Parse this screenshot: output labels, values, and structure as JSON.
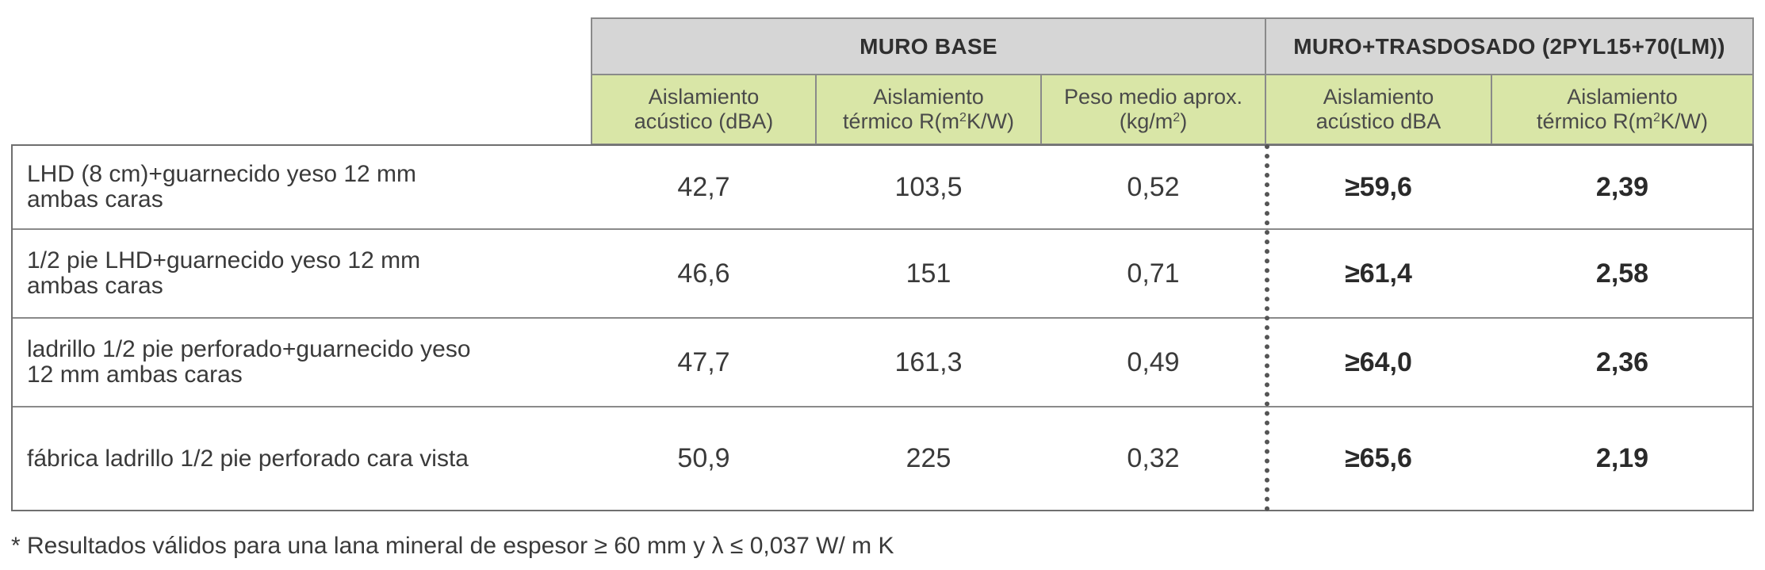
{
  "header": {
    "group_base": "MURO BASE",
    "group_trasdosado": "MURO+TRASDOSADO (2PYL15+70(LM))",
    "columns": [
      {
        "line1": "Aislamiento",
        "line2": "acústico (dBA)"
      },
      {
        "line1": "Aislamiento",
        "line2_pre": "térmico  R(m",
        "line2_sup": "2",
        "line2_post": "K/W)"
      },
      {
        "line1": "Peso medio aprox.",
        "line2_pre": "(kg/m",
        "line2_sup": "2",
        "line2_post": ")"
      },
      {
        "line1": "Aislamiento",
        "line2": "acústico dBA"
      },
      {
        "line1": "Aislamiento",
        "line2_pre": "térmico  R(m",
        "line2_sup": "2",
        "line2_post": "K/W)"
      }
    ]
  },
  "rows": [
    {
      "line1": "LHD (8 cm)+guarnecido yeso 12 mm",
      "line2": "ambas caras",
      "acustico": "42,7",
      "termico": "103,5",
      "peso": "0,52",
      "tras_acustico": "≥59,6",
      "tras_termico": "2,39"
    },
    {
      "line1": "1/2 pie LHD+guarnecido yeso 12 mm",
      "line2": "ambas caras",
      "acustico": "46,6",
      "termico": "151",
      "peso": "0,71",
      "tras_acustico": "≥61,4",
      "tras_termico": "2,58"
    },
    {
      "line1": "ladrillo 1/2 pie perforado+guarnecido yeso",
      "line2": "12 mm ambas caras",
      "acustico": "47,7",
      "termico": "161,3",
      "peso": "0,49",
      "tras_acustico": "≥64,0",
      "tras_termico": "2,36"
    },
    {
      "line1": "fábrica ladrillo 1/2 pie perforado cara vista",
      "line2": "",
      "acustico": "50,9",
      "termico": "225",
      "peso": "0,32",
      "tras_acustico": "≥65,6",
      "tras_termico": "2,19"
    }
  ],
  "footnote": "* Resultados válidos para una lana mineral de espesor ≥ 60 mm y λ ≤ 0,037 W/ m K",
  "colors": {
    "group_header_bg": "#d6d6d6",
    "sub_header_bg": "#d9e6a7",
    "border": "#8a8a8a"
  }
}
